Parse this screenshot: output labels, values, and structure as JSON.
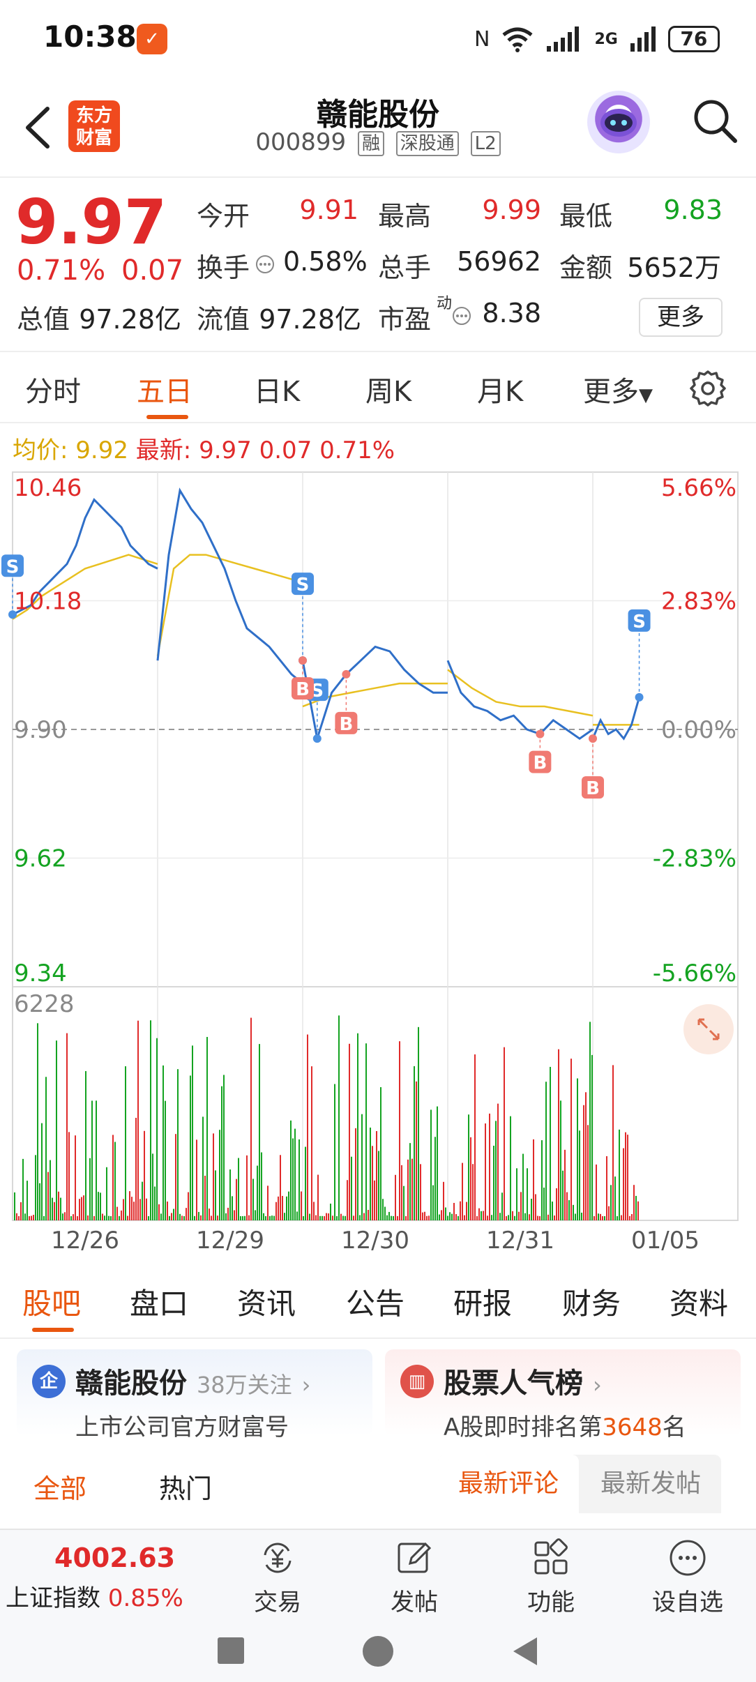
{
  "status_bar": {
    "time": "10:38",
    "battery": "76",
    "network": "2G",
    "icons": [
      "nfc-icon",
      "wifi-icon",
      "signal-icon",
      "battery-icon"
    ]
  },
  "header": {
    "logo_line1": "东方",
    "logo_line2": "财富",
    "stock_name": "赣能股份",
    "stock_code": "000899",
    "tags": [
      "融",
      "深股通",
      "L2"
    ]
  },
  "quote": {
    "price": "9.97",
    "pct": "0.71%",
    "change": "0.07",
    "open_label": "今开",
    "open": "9.91",
    "high_label": "最高",
    "high": "9.99",
    "low_label": "最低",
    "low": "9.83",
    "turnover_label": "换手",
    "turnover": "0.58%",
    "volume_label": "总手",
    "volume": "56962",
    "amount_label": "金额",
    "amount": "5652万",
    "mktcap_label": "总值",
    "mktcap": "97.28亿",
    "float_label": "流值",
    "float_cap": "97.28亿",
    "pe_label": "市盈",
    "pe_sup": "动",
    "pe": "8.38",
    "more_label": "更多"
  },
  "period_tabs": [
    "分时",
    "五日",
    "日K",
    "周K",
    "月K",
    "更多"
  ],
  "period_active": 1,
  "legend": {
    "avg_label": "均价:",
    "avg": "9.92",
    "latest_label": "最新:",
    "latest": "9.97 0.07 0.71%"
  },
  "chart_data": {
    "type": "line",
    "title": "",
    "x_ticks": [
      "12/26",
      "12/29",
      "12/30",
      "12/31",
      "01/05"
    ],
    "y_ticks": [
      "10.46",
      "10.18",
      "9.90",
      "9.62",
      "9.34"
    ],
    "y_pct_ticks": [
      "5.66%",
      "2.83%",
      "0.00%",
      "-2.83%",
      "-5.66%"
    ],
    "ylim": [
      9.34,
      10.46
    ],
    "prev_close": 9.9,
    "volume_max_label": "6228",
    "days": [
      {
        "date": "12/26",
        "price": [
          10.15,
          10.16,
          10.17,
          10.2,
          10.22,
          10.24,
          10.26,
          10.3,
          10.36,
          10.4,
          10.38,
          10.36,
          10.34,
          10.3,
          10.28,
          10.26,
          10.25
        ],
        "avg": [
          10.14,
          10.16,
          10.19,
          10.21,
          10.23,
          10.25,
          10.26,
          10.27,
          10.28,
          10.27,
          10.26
        ]
      },
      {
        "date": "12/29",
        "price": [
          10.05,
          10.28,
          10.42,
          10.38,
          10.35,
          10.3,
          10.25,
          10.18,
          10.12,
          10.1,
          10.08,
          10.05,
          10.02,
          10.0
        ],
        "avg": [
          10.06,
          10.25,
          10.28,
          10.28,
          10.27,
          10.26,
          10.25,
          10.24,
          10.23,
          10.22
        ]
      },
      {
        "date": "12/30",
        "price": [
          10.05,
          9.88,
          9.98,
          10.02,
          10.05,
          10.08,
          10.07,
          10.03,
          10.0,
          9.98,
          9.98
        ],
        "avg": [
          9.95,
          9.97,
          9.98,
          9.99,
          10.0,
          10.0,
          10.0
        ]
      },
      {
        "date": "12/31",
        "price": [
          10.05,
          9.98,
          9.95,
          9.94,
          9.92,
          9.93,
          9.9,
          9.89,
          9.92,
          9.9,
          9.88,
          9.9
        ],
        "avg": [
          10.03,
          9.99,
          9.96,
          9.95,
          9.95,
          9.94,
          9.93
        ]
      },
      {
        "date": "01/05",
        "price": [
          9.88,
          9.92,
          9.89,
          9.9,
          9.88,
          9.91,
          9.97
        ],
        "avg": [
          9.91,
          9.91,
          9.91
        ]
      }
    ],
    "signals": [
      "S",
      "S",
      "S",
      "B",
      "B",
      "B",
      "B",
      "S"
    ]
  },
  "stock_tabs": [
    "股吧",
    "盘口",
    "资讯",
    "公告",
    "研报",
    "财务",
    "资料"
  ],
  "stock_tab_active": 0,
  "cards": {
    "company_icon": "企",
    "company_name": "赣能股份",
    "company_follow": "38万关注",
    "company_sub": "上市公司官方财富号",
    "rank_title": "股票人气榜",
    "rank_prefix": "A股即时排名第",
    "rank_num": "3648",
    "rank_suffix": "名"
  },
  "feed_tabs": {
    "all": "全部",
    "hot": "热门",
    "sort_newest": "最新评论",
    "sort_post": "最新发帖"
  },
  "bottom_bar": {
    "index_value": "4002.63",
    "index_name": "上证指数",
    "index_pct": "0.85%",
    "nav": [
      {
        "label": "交易",
        "icon": "yuan-icon"
      },
      {
        "label": "发帖",
        "icon": "edit-icon"
      },
      {
        "label": "功能",
        "icon": "grid-icon"
      },
      {
        "label": "设自选",
        "icon": "more-dots-icon"
      }
    ]
  },
  "colors": {
    "up": "#e02a2a",
    "down": "#14a321",
    "accent": "#e9560f",
    "price_line": "#2f6fc8",
    "avg_line": "#e8c020",
    "sell_signal": "#4a90e2",
    "buy_signal": "#f07a72"
  }
}
